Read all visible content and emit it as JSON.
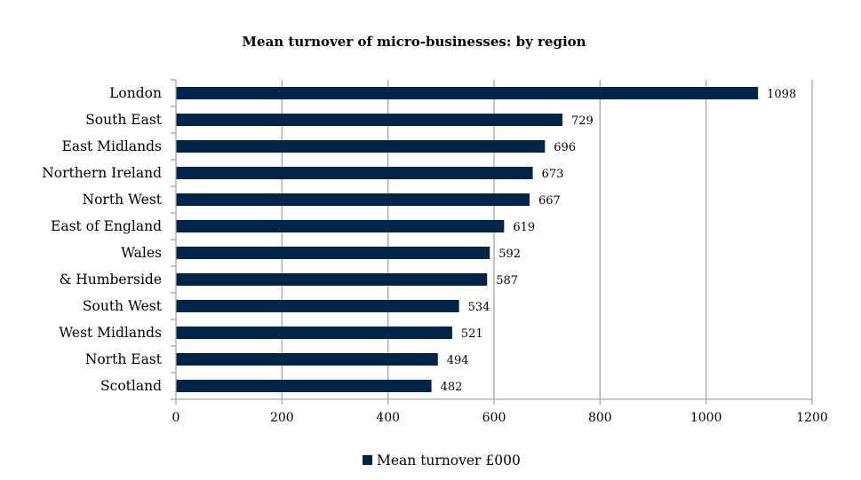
{
  "chart_data": {
    "type": "bar",
    "orientation": "horizontal",
    "title": "Mean turnover of micro-businesses: by region",
    "categories": [
      "London",
      "South East",
      "East Midlands",
      "Northern Ireland",
      "North West",
      "East of England",
      "Wales",
      "& Humberside",
      "South West",
      "West Midlands",
      "North East",
      "Scotland"
    ],
    "series": [
      {
        "name": "Mean turnover £000",
        "values": [
          1098,
          729,
          696,
          673,
          667,
          619,
          592,
          587,
          534,
          521,
          494,
          482
        ],
        "color": "#002549"
      }
    ],
    "xlabel": "",
    "ylabel": "",
    "xlim": [
      0,
      1200
    ],
    "xticks": [
      "0",
      "200",
      "400",
      "600",
      "800",
      "1000",
      "1200"
    ],
    "grid": true,
    "data_labels": true,
    "legend_position": "bottom"
  }
}
